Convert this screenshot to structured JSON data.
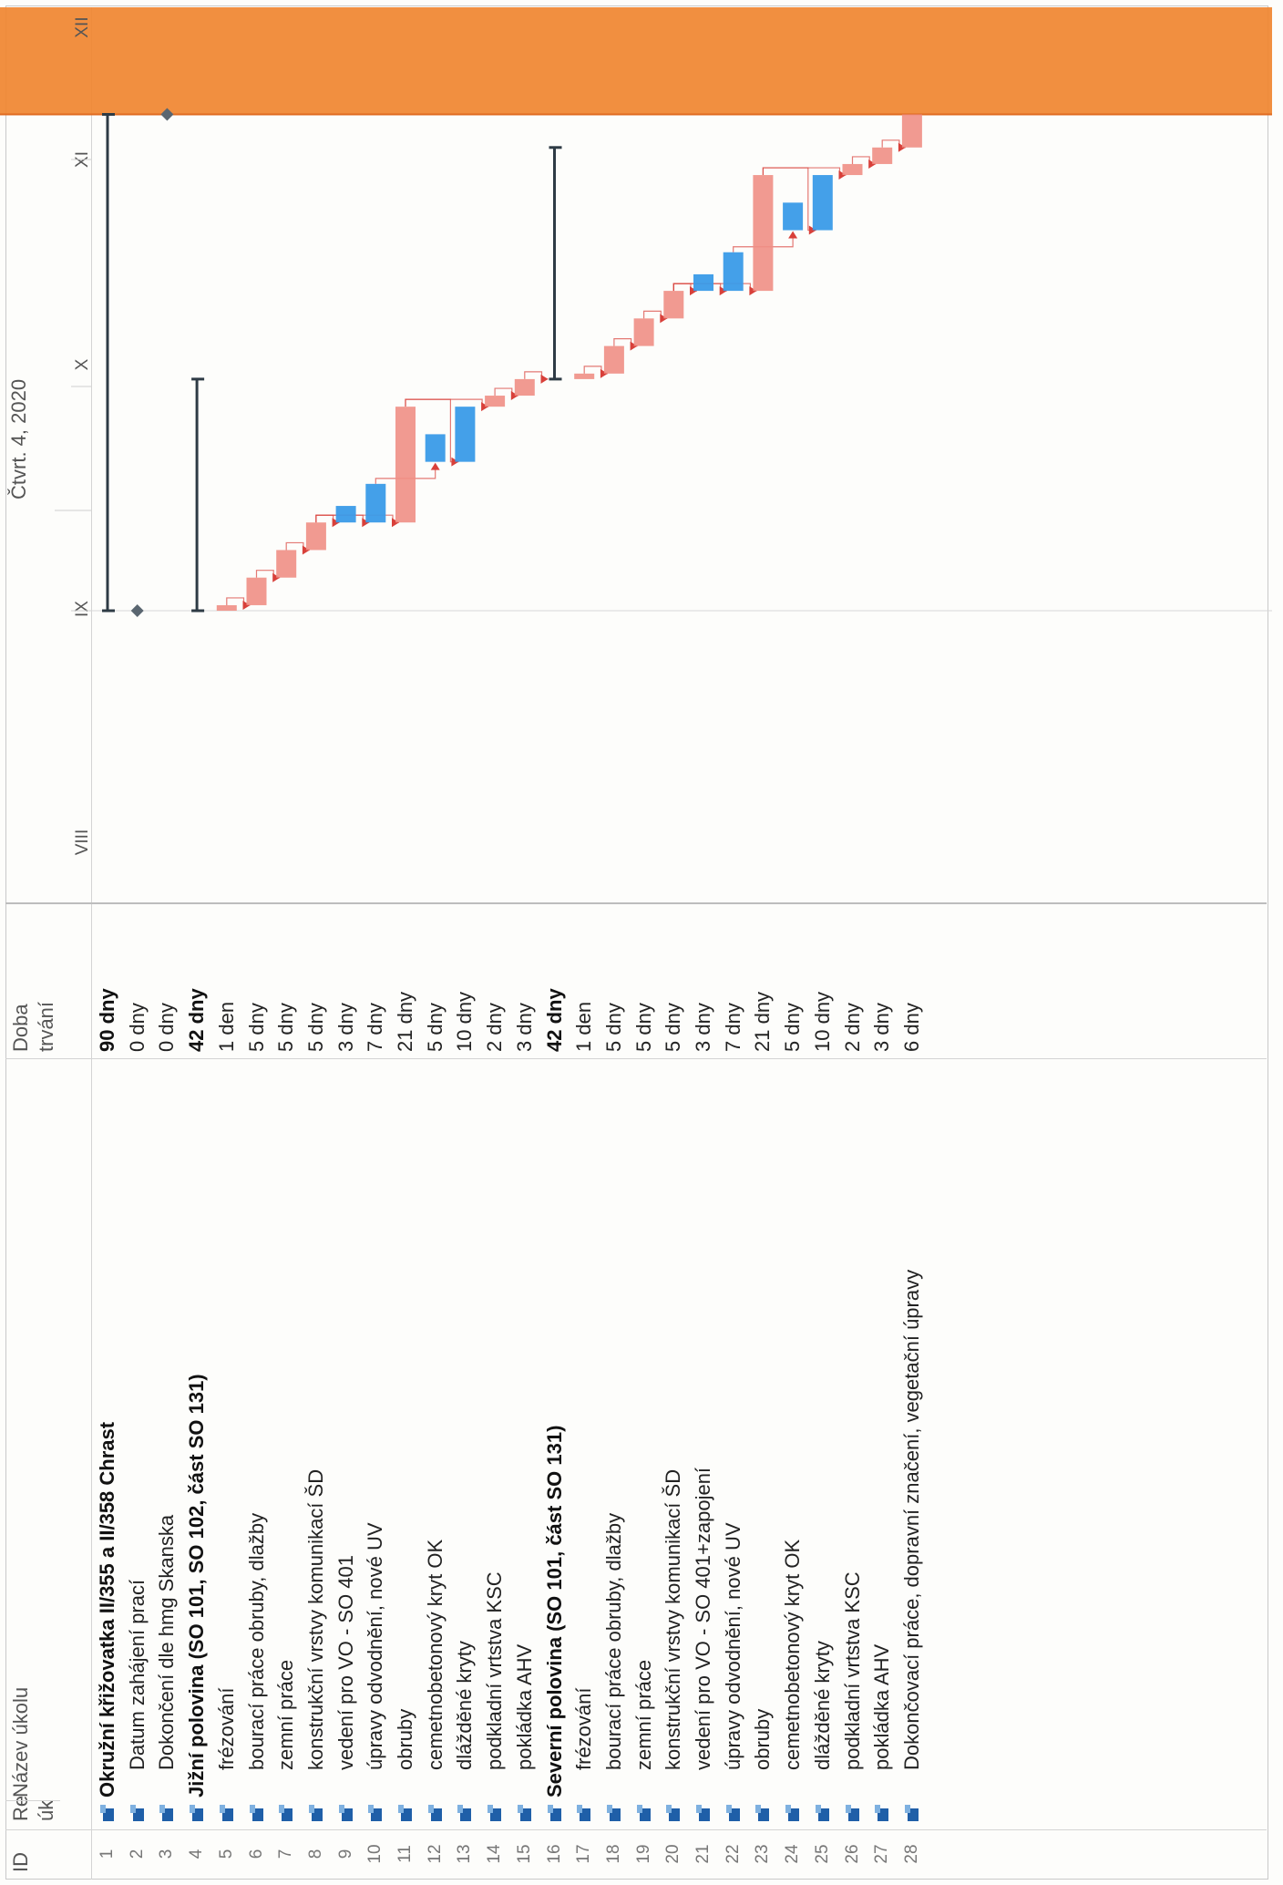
{
  "table": {
    "header": {
      "id": "ID",
      "mode_a": "Re",
      "mode_b": "úk",
      "name": "Název úkolu",
      "duration_a": "Doba",
      "duration_b": "trvání"
    },
    "rows": [
      {
        "id": "1",
        "name": "Okružní křižovatka II/355 a II/358 Chrast",
        "duration": "90 dny",
        "bold": true
      },
      {
        "id": "2",
        "name": "Datum zahájení prací",
        "duration": "0 dny",
        "bold": false
      },
      {
        "id": "3",
        "name": "Dokončení dle hmg Skanska",
        "duration": "0 dny",
        "bold": false
      },
      {
        "id": "4",
        "name": "Jižní polovina (SO 101, SO  102, část SO 131)",
        "duration": "42 dny",
        "bold": true
      },
      {
        "id": "5",
        "name": "frézování",
        "duration": "1 den",
        "bold": false
      },
      {
        "id": "6",
        "name": "bourací práce obruby, dlažby",
        "duration": "5 dny",
        "bold": false
      },
      {
        "id": "7",
        "name": "zemní práce",
        "duration": "5 dny",
        "bold": false
      },
      {
        "id": "8",
        "name": "konstrukční vrstvy komunikací ŠD",
        "duration": "5 dny",
        "bold": false
      },
      {
        "id": "9",
        "name": "vedení pro VO - SO 401",
        "duration": "3 dny",
        "bold": false
      },
      {
        "id": "10",
        "name": "úpravy odvodnění, nové UV",
        "duration": "7 dny",
        "bold": false
      },
      {
        "id": "11",
        "name": "obruby",
        "duration": "21 dny",
        "bold": false
      },
      {
        "id": "12",
        "name": "cemetnobetonový kryt OK",
        "duration": "5 dny",
        "bold": false
      },
      {
        "id": "13",
        "name": "dlážděné kryty",
        "duration": "10 dny",
        "bold": false
      },
      {
        "id": "14",
        "name": "podkladní vrtstva KSC",
        "duration": "2 dny",
        "bold": false
      },
      {
        "id": "15",
        "name": "pokládka AHV",
        "duration": "3 dny",
        "bold": false
      },
      {
        "id": "16",
        "name": "Severní polovina (SO 101, část SO 131)",
        "duration": "42 dny",
        "bold": true
      },
      {
        "id": "17",
        "name": "frézování",
        "duration": "1 den",
        "bold": false
      },
      {
        "id": "18",
        "name": "bourací práce obruby, dlažby",
        "duration": "5 dny",
        "bold": false
      },
      {
        "id": "19",
        "name": "zemní práce",
        "duration": "5 dny",
        "bold": false
      },
      {
        "id": "20",
        "name": "konstrukční vrstvy komunikací ŠD",
        "duration": "5 dny",
        "bold": false
      },
      {
        "id": "21",
        "name": "vedení pro VO - SO 401+zapojení",
        "duration": "3 dny",
        "bold": false
      },
      {
        "id": "22",
        "name": "úpravy odvodnění, nové UV",
        "duration": "7 dny",
        "bold": false
      },
      {
        "id": "23",
        "name": "obruby",
        "duration": "21 dny",
        "bold": false
      },
      {
        "id": "24",
        "name": "cemetnobetonový kryt OK",
        "duration": "5 dny",
        "bold": false
      },
      {
        "id": "25",
        "name": "dlážděné kryty",
        "duration": "10 dny",
        "bold": false
      },
      {
        "id": "26",
        "name": "podkladní vrtstva KSC",
        "duration": "2 dny",
        "bold": false
      },
      {
        "id": "27",
        "name": "pokládka AHV",
        "duration": "3 dny",
        "bold": false
      },
      {
        "id": "28",
        "name": "Dokončovací práce, dopravní značení, vegetační úpravy",
        "duration": "6 dny",
        "bold": false
      }
    ]
  },
  "chart_data": {
    "type": "gantt",
    "timescale": {
      "quarter_label": "Čtvrt. 4, 2020",
      "months": [
        "VIII",
        "IX",
        "X",
        "XI",
        "XII"
      ]
    },
    "x_unit": "days from project start",
    "highlight_after_day": 90,
    "colors": {
      "summary": "#2e3b45",
      "milestone": "#5a6670",
      "task": "#ef8f85",
      "task_light": "#f4b3aa",
      "critical_alt": "#3a9be8",
      "link": "#d8403a",
      "highlight": "#f08530"
    },
    "tasks": [
      {
        "row": 1,
        "kind": "summary",
        "start": 0,
        "end": 90
      },
      {
        "row": 2,
        "kind": "milestone",
        "start": 0,
        "end": 0
      },
      {
        "row": 3,
        "kind": "milestone",
        "start": 90,
        "end": 90
      },
      {
        "row": 4,
        "kind": "summary",
        "start": 0,
        "end": 42
      },
      {
        "row": 5,
        "kind": "task",
        "start": 0,
        "end": 1
      },
      {
        "row": 6,
        "kind": "task",
        "start": 1,
        "end": 6
      },
      {
        "row": 7,
        "kind": "task",
        "start": 6,
        "end": 11
      },
      {
        "row": 8,
        "kind": "task",
        "start": 11,
        "end": 16
      },
      {
        "row": 9,
        "kind": "alt",
        "start": 16,
        "end": 19
      },
      {
        "row": 10,
        "kind": "alt",
        "start": 16,
        "end": 23
      },
      {
        "row": 11,
        "kind": "task",
        "start": 16,
        "end": 37
      },
      {
        "row": 12,
        "kind": "alt",
        "start": 27,
        "end": 32
      },
      {
        "row": 13,
        "kind": "alt",
        "start": 27,
        "end": 37
      },
      {
        "row": 14,
        "kind": "task",
        "start": 37,
        "end": 39
      },
      {
        "row": 15,
        "kind": "task",
        "start": 39,
        "end": 42
      },
      {
        "row": 16,
        "kind": "summary",
        "start": 42,
        "end": 84
      },
      {
        "row": 17,
        "kind": "task",
        "start": 42,
        "end": 43
      },
      {
        "row": 18,
        "kind": "task",
        "start": 43,
        "end": 48
      },
      {
        "row": 19,
        "kind": "task",
        "start": 48,
        "end": 53
      },
      {
        "row": 20,
        "kind": "task",
        "start": 53,
        "end": 58
      },
      {
        "row": 21,
        "kind": "alt",
        "start": 58,
        "end": 61
      },
      {
        "row": 22,
        "kind": "alt",
        "start": 58,
        "end": 65
      },
      {
        "row": 23,
        "kind": "task",
        "start": 58,
        "end": 79
      },
      {
        "row": 24,
        "kind": "alt",
        "start": 69,
        "end": 74
      },
      {
        "row": 25,
        "kind": "alt",
        "start": 69,
        "end": 79
      },
      {
        "row": 26,
        "kind": "task",
        "start": 79,
        "end": 81
      },
      {
        "row": 27,
        "kind": "task",
        "start": 81,
        "end": 84
      },
      {
        "row": 28,
        "kind": "task",
        "start": 84,
        "end": 90
      }
    ],
    "links": [
      [
        5,
        6
      ],
      [
        6,
        7
      ],
      [
        7,
        8
      ],
      [
        8,
        9
      ],
      [
        8,
        10
      ],
      [
        8,
        11
      ],
      [
        10,
        12
      ],
      [
        11,
        13
      ],
      [
        11,
        14
      ],
      [
        14,
        15
      ],
      [
        15,
        16
      ],
      [
        17,
        18
      ],
      [
        18,
        19
      ],
      [
        19,
        20
      ],
      [
        20,
        21
      ],
      [
        20,
        22
      ],
      [
        20,
        23
      ],
      [
        22,
        24
      ],
      [
        23,
        25
      ],
      [
        23,
        26
      ],
      [
        26,
        27
      ],
      [
        27,
        28
      ]
    ]
  }
}
